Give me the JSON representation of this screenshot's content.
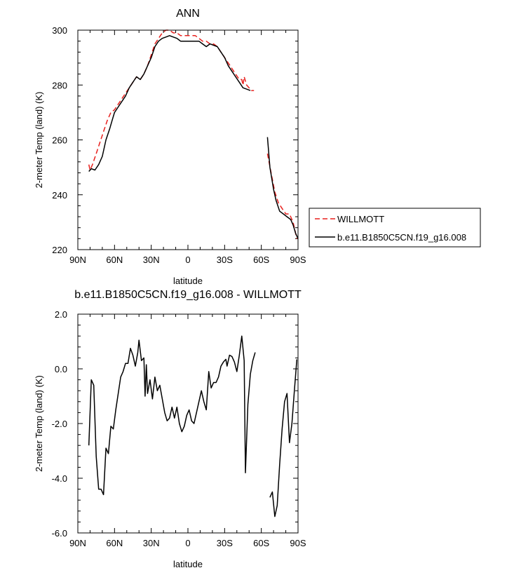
{
  "chart_data": [
    {
      "type": "line",
      "title": "ANN",
      "xlabel": "latitude",
      "ylabel": "2-meter Temp (land) (K)",
      "xlim": [
        90,
        -90
      ],
      "ylim": [
        220,
        300
      ],
      "xticks": [
        90,
        60,
        30,
        0,
        -30,
        -60,
        -90
      ],
      "xticklabels": [
        "90N",
        "60N",
        "30N",
        "0",
        "30S",
        "60S",
        "90S"
      ],
      "yticks": [
        220,
        240,
        260,
        280,
        300
      ],
      "yticklabels": [
        "220",
        "240",
        "260",
        "280",
        "300"
      ],
      "legend": "right",
      "series": [
        {
          "name": "WILLMOTT",
          "color": "#e8211e",
          "dash": "dashed",
          "segments": [
            [
              [
                81,
                251
              ],
              [
                80,
                249
              ],
              [
                78,
                251
              ],
              [
                75,
                255
              ],
              [
                72,
                259
              ],
              [
                69,
                263
              ],
              [
                66,
                267
              ],
              [
                63,
                270
              ],
              [
                60,
                271
              ],
              [
                57,
                273
              ],
              [
                54,
                275
              ],
              [
                51,
                277
              ],
              [
                48,
                279
              ],
              [
                45,
                281
              ],
              [
                42,
                283
              ],
              [
                39,
                282
              ],
              [
                36,
                284
              ],
              [
                33,
                287
              ],
              [
                30,
                291
              ],
              [
                27,
                295
              ],
              [
                24,
                297
              ],
              [
                21,
                299
              ],
              [
                18,
                300
              ],
              [
                15,
                300
              ],
              [
                12,
                299
              ],
              [
                9,
                299
              ],
              [
                6,
                298
              ],
              [
                3,
                298
              ],
              [
                0,
                298
              ],
              [
                -3,
                298
              ],
              [
                -6,
                298
              ],
              [
                -9,
                297
              ],
              [
                -12,
                296
              ],
              [
                -15,
                296
              ],
              [
                -18,
                295
              ],
              [
                -21,
                295
              ],
              [
                -24,
                294
              ],
              [
                -27,
                292
              ],
              [
                -30,
                290
              ],
              [
                -33,
                288
              ],
              [
                -36,
                286
              ],
              [
                -39,
                284
              ],
              [
                -42,
                282
              ],
              [
                -44,
                282
              ],
              [
                -45,
                280
              ],
              [
                -46,
                283
              ],
              [
                -48,
                280
              ],
              [
                -50,
                279
              ],
              [
                -52,
                278
              ],
              [
                -54,
                278
              ]
            ],
            [
              [
                -65,
                255
              ],
              [
                -68,
                248
              ],
              [
                -71,
                241
              ],
              [
                -74,
                237
              ],
              [
                -77,
                235
              ],
              [
                -80,
                233
              ],
              [
                -83,
                233
              ],
              [
                -86,
                230
              ],
              [
                -89,
                224
              ]
            ]
          ]
        },
        {
          "name": "b.e11.B1850C5CN.f19_g16.008",
          "color": "#000000",
          "dash": "solid",
          "segments": [
            [
              [
                81,
                248.5
              ],
              [
                79,
                249.5
              ],
              [
                76,
                249
              ],
              [
                73,
                251
              ],
              [
                70,
                254
              ],
              [
                67,
                260
              ],
              [
                64,
                264
              ],
              [
                62,
                267
              ],
              [
                60,
                270
              ],
              [
                57,
                272
              ],
              [
                54,
                274
              ],
              [
                51,
                276
              ],
              [
                48,
                279
              ],
              [
                45,
                281
              ],
              [
                42,
                283
              ],
              [
                39,
                282
              ],
              [
                36,
                284
              ],
              [
                33,
                287
              ],
              [
                30,
                290
              ],
              [
                27,
                294
              ],
              [
                24,
                296
              ],
              [
                21,
                297
              ],
              [
                18,
                297.5
              ],
              [
                15,
                298
              ],
              [
                12,
                297.5
              ],
              [
                9,
                297
              ],
              [
                6,
                296
              ],
              [
                3,
                296
              ],
              [
                0,
                296
              ],
              [
                -3,
                296
              ],
              [
                -6,
                296
              ],
              [
                -9,
                296
              ],
              [
                -12,
                295
              ],
              [
                -15,
                294
              ],
              [
                -18,
                295
              ],
              [
                -21,
                294.5
              ],
              [
                -24,
                294
              ],
              [
                -27,
                292
              ],
              [
                -30,
                290
              ],
              [
                -33,
                287
              ],
              [
                -36,
                285
              ],
              [
                -39,
                283
              ],
              [
                -42,
                281
              ],
              [
                -45,
                279
              ],
              [
                -48,
                278.5
              ],
              [
                -51,
                278
              ]
            ],
            [
              [
                -65,
                261
              ],
              [
                -67,
                250
              ],
              [
                -70,
                242
              ],
              [
                -72,
                238
              ],
              [
                -75,
                234
              ],
              [
                -78,
                233
              ],
              [
                -81,
                232
              ],
              [
                -84,
                231
              ],
              [
                -86,
                229
              ],
              [
                -88,
                226
              ],
              [
                -90,
                224
              ]
            ]
          ]
        }
      ]
    },
    {
      "type": "line",
      "title": "b.e11.B1850C5CN.f19_g16.008 - WILLMOTT",
      "xlabel": "latitude",
      "ylabel": "2-meter Temp (land) (K)",
      "xlim": [
        90,
        -90
      ],
      "ylim": [
        -6,
        2
      ],
      "xticks": [
        90,
        60,
        30,
        0,
        -30,
        -60,
        -90
      ],
      "xticklabels": [
        "90N",
        "60N",
        "30N",
        "0",
        "30S",
        "60S",
        "90S"
      ],
      "yticks": [
        -6,
        -4,
        -2,
        0,
        2
      ],
      "yticklabels": [
        "-6.0",
        "-4.0",
        "-2.0",
        "0.0",
        "2.0"
      ],
      "series": [
        {
          "color": "#000000",
          "dash": "solid",
          "segments": [
            [
              [
                81,
                -2.8
              ],
              [
                79,
                -0.4
              ],
              [
                77,
                -0.6
              ],
              [
                75,
                -3.2
              ],
              [
                73,
                -4.4
              ],
              [
                71,
                -4.4
              ],
              [
                69,
                -4.6
              ],
              [
                67,
                -2.9
              ],
              [
                65,
                -3.1
              ],
              [
                63,
                -2.1
              ],
              [
                61,
                -2.2
              ],
              [
                59,
                -1.5
              ],
              [
                57,
                -0.9
              ],
              [
                55,
                -0.3
              ],
              [
                53,
                -0.1
              ],
              [
                51,
                0.2
              ],
              [
                49,
                0.2
              ],
              [
                47,
                0.75
              ],
              [
                45,
                0.5
              ],
              [
                43,
                0.1
              ],
              [
                41,
                0.6
              ],
              [
                40,
                1.05
              ],
              [
                38,
                0.3
              ],
              [
                36,
                0.4
              ],
              [
                35,
                -1.0
              ],
              [
                34,
                0.15
              ],
              [
                33,
                -0.9
              ],
              [
                31,
                -0.4
              ],
              [
                29,
                -1.1
              ],
              [
                27,
                -0.3
              ],
              [
                25,
                -0.8
              ],
              [
                23,
                -0.6
              ],
              [
                21,
                -1.1
              ],
              [
                19,
                -1.6
              ],
              [
                17,
                -1.9
              ],
              [
                15,
                -1.8
              ],
              [
                13,
                -1.4
              ],
              [
                11,
                -1.8
              ],
              [
                9,
                -1.4
              ],
              [
                7,
                -2.0
              ],
              [
                5,
                -2.3
              ],
              [
                3,
                -2.1
              ],
              [
                1,
                -1.7
              ],
              [
                -1,
                -1.5
              ],
              [
                -3,
                -1.9
              ],
              [
                -5,
                -2.0
              ],
              [
                -7,
                -1.6
              ],
              [
                -9,
                -1.2
              ],
              [
                -11,
                -0.8
              ],
              [
                -13,
                -1.2
              ],
              [
                -15,
                -1.5
              ],
              [
                -17,
                -0.1
              ],
              [
                -19,
                -0.7
              ],
              [
                -21,
                -0.5
              ],
              [
                -23,
                -0.5
              ],
              [
                -25,
                -0.3
              ],
              [
                -27,
                0.1
              ],
              [
                -29,
                0.25
              ],
              [
                -31,
                0.35
              ],
              [
                -32,
                0.1
              ],
              [
                -34,
                0.5
              ],
              [
                -36,
                0.45
              ],
              [
                -38,
                0.25
              ],
              [
                -40,
                -0.1
              ],
              [
                -42,
                0.5
              ],
              [
                -44,
                1.2
              ],
              [
                -46,
                0.3
              ],
              [
                -47,
                -3.8
              ],
              [
                -49,
                -1.3
              ],
              [
                -51,
                -0.2
              ],
              [
                -53,
                0.3
              ],
              [
                -55,
                0.6
              ]
            ],
            [
              [
                -67,
                -4.7
              ],
              [
                -69,
                -4.5
              ],
              [
                -71,
                -5.4
              ],
              [
                -73,
                -5.0
              ],
              [
                -75,
                -3.5
              ],
              [
                -77,
                -2.2
              ],
              [
                -79,
                -1.2
              ],
              [
                -81,
                -0.9
              ],
              [
                -83,
                -2.7
              ],
              [
                -85,
                -2.0
              ],
              [
                -87,
                -0.8
              ],
              [
                -89,
                0.35
              ]
            ]
          ]
        }
      ]
    }
  ]
}
